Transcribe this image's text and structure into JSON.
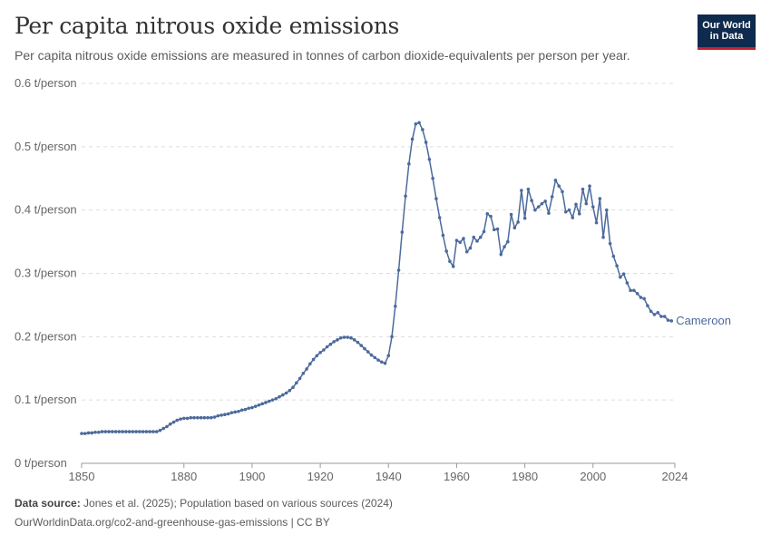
{
  "header": {
    "title": "Per capita nitrous oxide emissions",
    "subtitle": "Per capita nitrous oxide emissions are measured in tonnes of carbon dioxide-equivalents per person per year."
  },
  "logo": {
    "line1": "Our World",
    "line2": "in Data",
    "bg_color": "#0e2a4d",
    "accent_color": "#c8202e"
  },
  "footer": {
    "source_label": "Data source:",
    "source_text": "Jones et al. (2025); Population based on various sources (2024)",
    "url_license": "OurWorldinData.org/co2-and-greenhouse-gas-emissions | CC BY"
  },
  "chart_data": {
    "type": "line",
    "title": "Per capita nitrous oxide emissions",
    "xlabel": "",
    "ylabel": "",
    "xlim": [
      1850,
      2024
    ],
    "ylim": [
      0,
      0.6
    ],
    "x_ticks": [
      "1850",
      "1880",
      "1900",
      "1920",
      "1940",
      "1960",
      "1980",
      "2000",
      "2024"
    ],
    "y_ticks": [
      "0 t/person",
      "0.1 t/person",
      "0.2 t/person",
      "0.3 t/person",
      "0.4 t/person",
      "0.5 t/person",
      "0.6 t/person"
    ],
    "grid": "horizontal-dashed",
    "series": [
      {
        "name": "Cameroon",
        "color": "#4c6a9c",
        "points": [
          [
            1850,
            0.047
          ],
          [
            1851,
            0.047
          ],
          [
            1852,
            0.048
          ],
          [
            1853,
            0.048
          ],
          [
            1854,
            0.049
          ],
          [
            1855,
            0.049
          ],
          [
            1856,
            0.05
          ],
          [
            1857,
            0.05
          ],
          [
            1858,
            0.05
          ],
          [
            1859,
            0.05
          ],
          [
            1860,
            0.05
          ],
          [
            1861,
            0.05
          ],
          [
            1862,
            0.05
          ],
          [
            1863,
            0.05
          ],
          [
            1864,
            0.05
          ],
          [
            1865,
            0.05
          ],
          [
            1866,
            0.05
          ],
          [
            1867,
            0.05
          ],
          [
            1868,
            0.05
          ],
          [
            1869,
            0.05
          ],
          [
            1870,
            0.05
          ],
          [
            1871,
            0.05
          ],
          [
            1872,
            0.05
          ],
          [
            1873,
            0.052
          ],
          [
            1874,
            0.055
          ],
          [
            1875,
            0.058
          ],
          [
            1876,
            0.062
          ],
          [
            1877,
            0.065
          ],
          [
            1878,
            0.068
          ],
          [
            1879,
            0.07
          ],
          [
            1880,
            0.071
          ],
          [
            1881,
            0.071
          ],
          [
            1882,
            0.072
          ],
          [
            1883,
            0.072
          ],
          [
            1884,
            0.072
          ],
          [
            1885,
            0.072
          ],
          [
            1886,
            0.072
          ],
          [
            1887,
            0.072
          ],
          [
            1888,
            0.072
          ],
          [
            1889,
            0.073
          ],
          [
            1890,
            0.075
          ],
          [
            1891,
            0.076
          ],
          [
            1892,
            0.077
          ],
          [
            1893,
            0.078
          ],
          [
            1894,
            0.08
          ],
          [
            1895,
            0.081
          ],
          [
            1896,
            0.082
          ],
          [
            1897,
            0.084
          ],
          [
            1898,
            0.085
          ],
          [
            1899,
            0.087
          ],
          [
            1900,
            0.088
          ],
          [
            1901,
            0.09
          ],
          [
            1902,
            0.092
          ],
          [
            1903,
            0.094
          ],
          [
            1904,
            0.096
          ],
          [
            1905,
            0.098
          ],
          [
            1906,
            0.1
          ],
          [
            1907,
            0.102
          ],
          [
            1908,
            0.105
          ],
          [
            1909,
            0.108
          ],
          [
            1910,
            0.111
          ],
          [
            1911,
            0.115
          ],
          [
            1912,
            0.12
          ],
          [
            1913,
            0.127
          ],
          [
            1914,
            0.134
          ],
          [
            1915,
            0.142
          ],
          [
            1916,
            0.149
          ],
          [
            1917,
            0.157
          ],
          [
            1918,
            0.164
          ],
          [
            1919,
            0.17
          ],
          [
            1920,
            0.175
          ],
          [
            1921,
            0.179
          ],
          [
            1922,
            0.184
          ],
          [
            1923,
            0.188
          ],
          [
            1924,
            0.192
          ],
          [
            1925,
            0.195
          ],
          [
            1926,
            0.198
          ],
          [
            1927,
            0.199
          ],
          [
            1928,
            0.199
          ],
          [
            1929,
            0.198
          ],
          [
            1930,
            0.195
          ],
          [
            1931,
            0.191
          ],
          [
            1932,
            0.186
          ],
          [
            1933,
            0.181
          ],
          [
            1934,
            0.176
          ],
          [
            1935,
            0.171
          ],
          [
            1936,
            0.167
          ],
          [
            1937,
            0.163
          ],
          [
            1938,
            0.16
          ],
          [
            1939,
            0.158
          ],
          [
            1940,
            0.17
          ],
          [
            1941,
            0.2
          ],
          [
            1942,
            0.248
          ],
          [
            1943,
            0.305
          ],
          [
            1944,
            0.365
          ],
          [
            1945,
            0.422
          ],
          [
            1946,
            0.473
          ],
          [
            1947,
            0.512
          ],
          [
            1948,
            0.536
          ],
          [
            1949,
            0.538
          ],
          [
            1950,
            0.527
          ],
          [
            1951,
            0.507
          ],
          [
            1952,
            0.48
          ],
          [
            1953,
            0.45
          ],
          [
            1954,
            0.418
          ],
          [
            1955,
            0.388
          ],
          [
            1956,
            0.36
          ],
          [
            1957,
            0.335
          ],
          [
            1958,
            0.319
          ],
          [
            1959,
            0.311
          ],
          [
            1960,
            0.352
          ],
          [
            1961,
            0.349
          ],
          [
            1962,
            0.355
          ],
          [
            1963,
            0.334
          ],
          [
            1964,
            0.34
          ],
          [
            1965,
            0.357
          ],
          [
            1966,
            0.351
          ],
          [
            1967,
            0.357
          ],
          [
            1968,
            0.366
          ],
          [
            1969,
            0.394
          ],
          [
            1970,
            0.39
          ],
          [
            1971,
            0.369
          ],
          [
            1972,
            0.37
          ],
          [
            1973,
            0.33
          ],
          [
            1974,
            0.342
          ],
          [
            1975,
            0.35
          ],
          [
            1976,
            0.393
          ],
          [
            1977,
            0.372
          ],
          [
            1978,
            0.381
          ],
          [
            1979,
            0.431
          ],
          [
            1980,
            0.387
          ],
          [
            1981,
            0.433
          ],
          [
            1982,
            0.415
          ],
          [
            1983,
            0.4
          ],
          [
            1984,
            0.405
          ],
          [
            1985,
            0.41
          ],
          [
            1986,
            0.414
          ],
          [
            1987,
            0.395
          ],
          [
            1988,
            0.421
          ],
          [
            1989,
            0.447
          ],
          [
            1990,
            0.438
          ],
          [
            1991,
            0.429
          ],
          [
            1992,
            0.397
          ],
          [
            1993,
            0.4
          ],
          [
            1994,
            0.388
          ],
          [
            1995,
            0.409
          ],
          [
            1996,
            0.394
          ],
          [
            1997,
            0.433
          ],
          [
            1998,
            0.41
          ],
          [
            1999,
            0.438
          ],
          [
            2000,
            0.405
          ],
          [
            2001,
            0.38
          ],
          [
            2002,
            0.418
          ],
          [
            2003,
            0.357
          ],
          [
            2004,
            0.4
          ],
          [
            2005,
            0.347
          ],
          [
            2006,
            0.327
          ],
          [
            2007,
            0.312
          ],
          [
            2008,
            0.294
          ],
          [
            2009,
            0.299
          ],
          [
            2010,
            0.285
          ],
          [
            2011,
            0.273
          ],
          [
            2012,
            0.273
          ],
          [
            2013,
            0.268
          ],
          [
            2014,
            0.262
          ],
          [
            2015,
            0.26
          ],
          [
            2016,
            0.249
          ],
          [
            2017,
            0.24
          ],
          [
            2018,
            0.235
          ],
          [
            2019,
            0.238
          ],
          [
            2020,
            0.232
          ],
          [
            2021,
            0.232
          ],
          [
            2022,
            0.226
          ],
          [
            2023,
            0.225
          ]
        ]
      }
    ]
  }
}
